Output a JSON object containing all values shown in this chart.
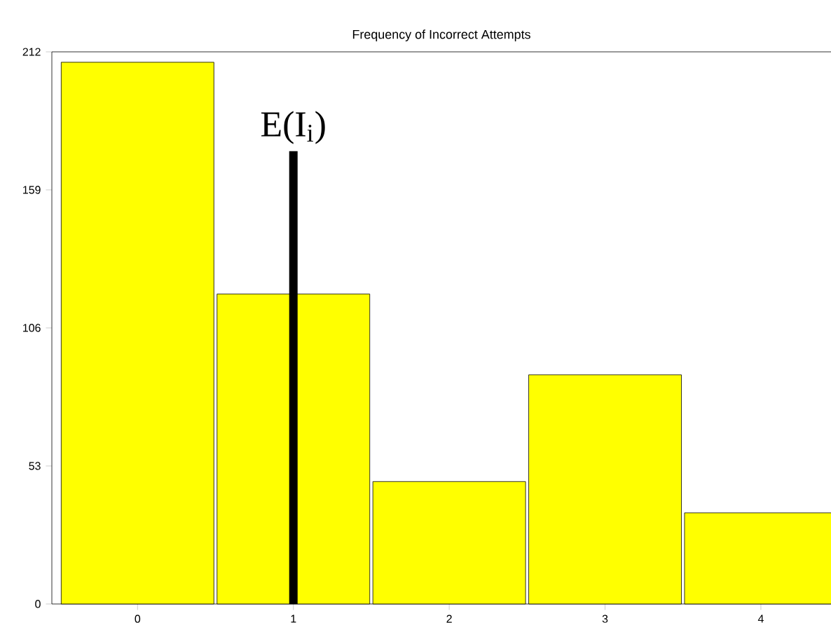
{
  "chart_data": {
    "type": "bar",
    "title": "Frequency of Incorrect Attempts",
    "categories": [
      "0",
      "1",
      "2",
      "3",
      "4"
    ],
    "values": [
      208,
      119,
      47,
      88,
      35
    ],
    "color": "#ffff00",
    "ylim": [
      0,
      212
    ],
    "yticks": [
      0,
      53,
      106,
      159,
      212
    ],
    "grid": false,
    "ref_lines": [
      {
        "axis": "x",
        "value": "1",
        "label": "E(I$_{i}$)",
        "color": "#000000"
      }
    ]
  }
}
